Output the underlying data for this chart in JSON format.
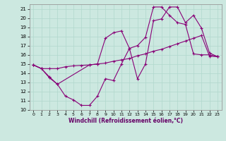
{
  "xlabel": "Windchill (Refroidissement éolien,°C)",
  "xlim": [
    -0.5,
    23.5
  ],
  "ylim": [
    10,
    21.5
  ],
  "yticks": [
    10,
    11,
    12,
    13,
    14,
    15,
    16,
    17,
    18,
    19,
    20,
    21
  ],
  "xticks": [
    0,
    1,
    2,
    3,
    4,
    5,
    6,
    7,
    8,
    9,
    10,
    11,
    12,
    13,
    14,
    15,
    16,
    17,
    18,
    19,
    20,
    21,
    22,
    23
  ],
  "bg_color": "#cce8e0",
  "line_color": "#880077",
  "line1_x": [
    0,
    1,
    2,
    3,
    4,
    5,
    6,
    7,
    8,
    9,
    10,
    11,
    12,
    13,
    14,
    15,
    16,
    17,
    18,
    19,
    20,
    21,
    22,
    23
  ],
  "line1_y": [
    14.9,
    14.5,
    14.5,
    14.5,
    14.7,
    14.8,
    14.85,
    14.9,
    15.0,
    15.1,
    15.3,
    15.45,
    15.6,
    15.9,
    16.1,
    16.4,
    16.6,
    16.9,
    17.2,
    17.5,
    17.8,
    18.1,
    15.85,
    15.8
  ],
  "line2_x": [
    0,
    1,
    2,
    3,
    4,
    5,
    6,
    7,
    8,
    9,
    10,
    11,
    12,
    13,
    14,
    15,
    16,
    17,
    18,
    19,
    20,
    21,
    22,
    23
  ],
  "line2_y": [
    14.9,
    14.5,
    13.5,
    12.8,
    11.5,
    11.1,
    10.5,
    10.5,
    11.5,
    13.4,
    13.2,
    15.0,
    16.7,
    13.4,
    15.0,
    19.7,
    19.9,
    21.2,
    21.2,
    19.5,
    20.3,
    18.9,
    16.2,
    15.8
  ],
  "line3_x": [
    0,
    1,
    2,
    3,
    7,
    8,
    9,
    10,
    11,
    12,
    13,
    14,
    15,
    16,
    17,
    18,
    19,
    20,
    21,
    22,
    23
  ],
  "line3_y": [
    14.9,
    14.5,
    13.6,
    12.8,
    14.9,
    15.0,
    17.8,
    18.4,
    18.6,
    16.7,
    17.0,
    17.9,
    21.2,
    21.2,
    20.3,
    19.5,
    19.3,
    16.1,
    16.0,
    16.0,
    15.8
  ]
}
